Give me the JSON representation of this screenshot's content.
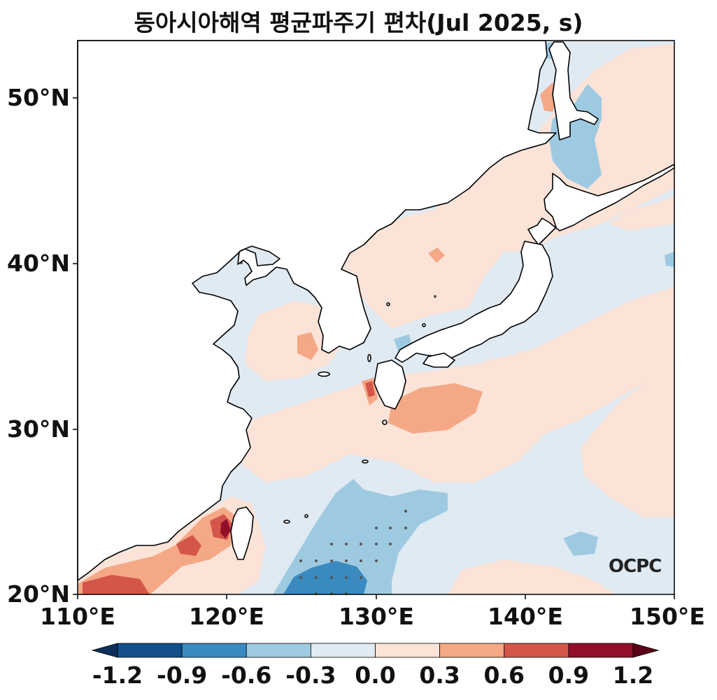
{
  "title": "동아시아해역 평균파주기 편차(Jul 2025, s)",
  "lat_ticks": [
    "50°N",
    "40°N",
    "30°N",
    "20°N"
  ],
  "lon_ticks": [
    "110°E",
    "120°E",
    "130°E",
    "140°E",
    "150°E"
  ],
  "colorbar": {
    "ticks": [
      "-1.2",
      "-0.9",
      "-0.6",
      "-0.3",
      "0.0",
      "0.3",
      "0.6",
      "0.9",
      "1.2"
    ],
    "colors": [
      "#124e8a",
      "#3a8ac0",
      "#9ecae1",
      "#dfeaf3",
      "#fbe3d8",
      "#f4a886",
      "#d4564a",
      "#920f2a"
    ],
    "extend_low_color": "#0b2f5a",
    "extend_high_color": "#5a0018"
  },
  "logo_text": "OCPC",
  "map": {
    "lon_range": [
      110,
      150
    ],
    "lat_range": [
      20,
      53.5
    ],
    "land_color": "#ffffff",
    "coastline_color": "#000000"
  }
}
